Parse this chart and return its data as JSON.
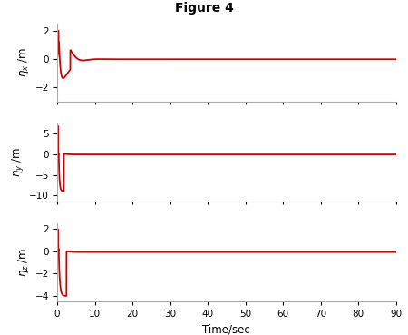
{
  "title": "Figure 4",
  "line_color": "#cc0000",
  "line_width": 1.3,
  "background_color": "#ffffff",
  "subplots": [
    {
      "ylabel": "$\\eta_x$ /m",
      "ylim": [
        -3.0,
        2.5
      ],
      "yticks": [
        -2,
        0,
        2
      ],
      "xlim": [
        0,
        90
      ],
      "xticks": [
        0,
        10,
        20,
        30,
        40,
        50,
        60,
        70,
        80,
        90
      ]
    },
    {
      "ylabel": "$\\eta_y$ /m",
      "ylim": [
        -11.5,
        7.5
      ],
      "yticks": [
        -10,
        -5,
        0,
        5
      ],
      "xlim": [
        0,
        90
      ],
      "xticks": [
        0,
        10,
        20,
        30,
        40,
        50,
        60,
        70,
        80,
        90
      ]
    },
    {
      "ylabel": "$\\eta_z$ /m",
      "ylim": [
        -4.5,
        2.5
      ],
      "yticks": [
        -4,
        -2,
        0,
        2
      ],
      "xlim": [
        0,
        90
      ],
      "xticks": [
        0,
        10,
        20,
        30,
        40,
        50,
        60,
        70,
        80,
        90
      ]
    }
  ],
  "xlabel": "Time/sec",
  "title_fontsize": 10,
  "label_fontsize": 8.5,
  "tick_fontsize": 7.5,
  "spine_color": "#aaaaaa"
}
